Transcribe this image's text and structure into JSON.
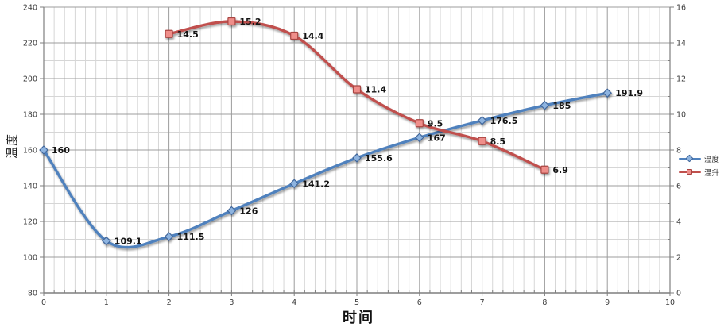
{
  "chart_data": {
    "type": "line",
    "title": "",
    "xlabel": "时间",
    "ylabel_left": "温度",
    "x_range": [
      0,
      10
    ],
    "x_ticks": [
      0,
      1,
      2,
      3,
      4,
      5,
      6,
      7,
      8,
      9,
      10
    ],
    "x_minor_divisions_per_unit": 6,
    "y_left_range": [
      80,
      240
    ],
    "y_left_ticks": [
      80,
      100,
      120,
      140,
      160,
      180,
      200,
      220,
      240
    ],
    "y_left_minor_step": 10,
    "y_right_range": [
      0,
      16
    ],
    "y_right_ticks": [
      0,
      2,
      4,
      6,
      8,
      10,
      12,
      14,
      16
    ],
    "y_right_minor_step": 1,
    "grid": true,
    "legend_position": "right",
    "series": [
      {
        "key": "temperature",
        "name": "温度",
        "axis": "left",
        "marker": "diamond",
        "color": "#4f81bd",
        "marker_fill": "#8eb4e0",
        "marker_stroke": "#41669a",
        "x": [
          0,
          1,
          2,
          3,
          4,
          5,
          6,
          7,
          8,
          9
        ],
        "values": [
          160,
          109.1,
          111.5,
          126,
          141.2,
          155.6,
          167,
          176.5,
          185,
          191.9
        ],
        "labels": [
          "160",
          "109.1",
          "111.5",
          "126",
          "141.2",
          "155.6",
          "167",
          "176.5",
          "185",
          "191.9"
        ]
      },
      {
        "key": "temperature-rise",
        "name": "温升",
        "axis": "right",
        "marker": "square",
        "color": "#c0504d",
        "marker_fill": "#ef8e8a",
        "marker_stroke": "#a94442",
        "x": [
          2,
          3,
          4,
          5,
          6,
          7,
          8
        ],
        "values": [
          14.5,
          15.2,
          14.4,
          11.4,
          9.5,
          8.5,
          6.9
        ],
        "labels": [
          "14.5",
          "15.2",
          "14.4",
          "11.4",
          "9.5",
          "8.5",
          "6.9"
        ]
      }
    ],
    "colors": {
      "grid_minor": "#d6d6d6",
      "grid_major": "#9c9c9c",
      "axis": "#7f7f7f",
      "tick_label": "#3c3c3c",
      "data_label": "#141414"
    }
  }
}
